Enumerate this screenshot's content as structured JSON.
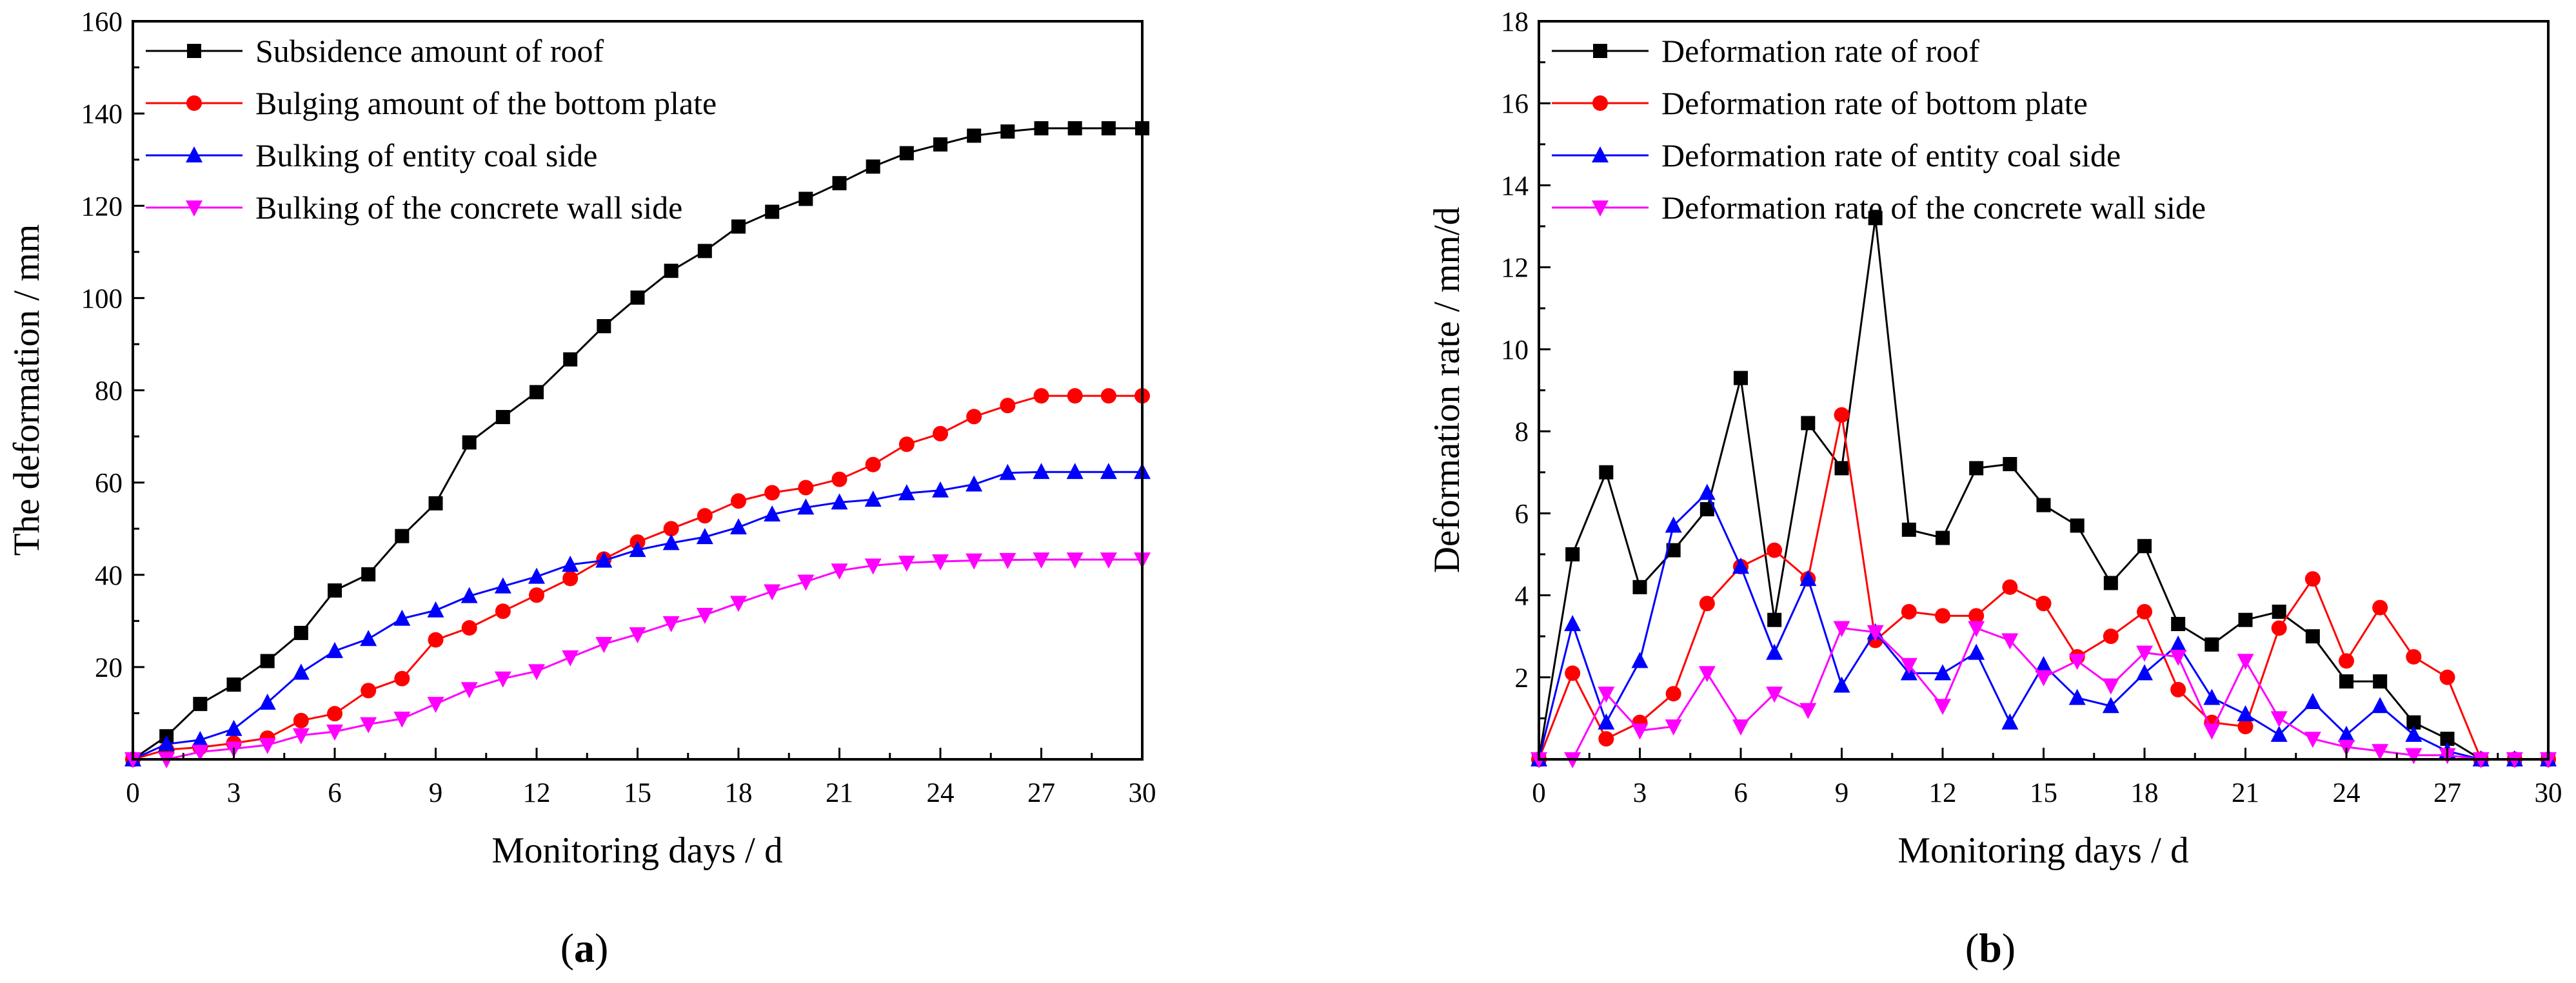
{
  "colors": {
    "roof": "#000000",
    "bottom": "#ff0000",
    "coal": "#0000ff",
    "wall": "#ff00ff"
  },
  "chart_data": [
    {
      "type": "line",
      "panel_label": "a",
      "panel_label_open": "(",
      "panel_label_close": ")",
      "title": "",
      "xlabel": "Monitoring days / d",
      "ylabel": "The deformation / mm",
      "xlim": [
        0,
        30
      ],
      "ylim": [
        0,
        160
      ],
      "xticks": [
        0,
        3,
        6,
        9,
        12,
        15,
        18,
        21,
        24,
        27,
        30
      ],
      "yticks": [
        20,
        40,
        60,
        80,
        100,
        120,
        140,
        160
      ],
      "legend_position": "top-left",
      "x": [
        0,
        1,
        2,
        3,
        4,
        5,
        6,
        7,
        8,
        9,
        10,
        11,
        12,
        13,
        14,
        15,
        16,
        17,
        18,
        19,
        20,
        21,
        22,
        23,
        24,
        25,
        26,
        27,
        28,
        29,
        30
      ],
      "series": [
        {
          "name": "Subsidence amount of roof",
          "color_key": "roof",
          "marker": "square",
          "values": [
            0,
            5,
            12,
            16.2,
            21.3,
            27.4,
            36.6,
            40.1,
            48.4,
            55.5,
            68.7,
            74.2,
            79.6,
            86.7,
            93.9,
            100.1,
            105.9,
            110.2,
            115.5,
            118.7,
            121.5,
            124.9,
            128.5,
            131.4,
            133.3,
            135.2,
            136.1,
            136.8,
            136.8,
            136.8,
            136.8
          ]
        },
        {
          "name": "Bulging amount of the bottom plate",
          "color_key": "bottom",
          "marker": "circle",
          "values": [
            0,
            2.1,
            2.6,
            3.5,
            4.6,
            8.4,
            9.9,
            14.9,
            17.5,
            25.9,
            28.5,
            32.1,
            35.6,
            39.2,
            43.4,
            47.1,
            50.0,
            52.8,
            56.0,
            57.8,
            58.9,
            60.7,
            63.9,
            68.3,
            70.6,
            74.3,
            76.7,
            78.8,
            78.8,
            78.8,
            78.8
          ]
        },
        {
          "name": "Bulking of entity coal side",
          "color_key": "coal",
          "marker": "triangle-up",
          "values": [
            0,
            3.3,
            4.2,
            6.6,
            12.3,
            18.8,
            23.5,
            26.1,
            30.5,
            32.3,
            35.4,
            37.5,
            39.6,
            42.2,
            43.1,
            45.4,
            46.9,
            48.2,
            50.3,
            53.1,
            54.6,
            55.7,
            56.3,
            57.7,
            58.3,
            59.6,
            62.1,
            62.3,
            62.3,
            62.3,
            62.3
          ]
        },
        {
          "name": "Bulking of the concrete wall side",
          "color_key": "wall",
          "marker": "triangle-down",
          "values": [
            0,
            0,
            1.6,
            2.3,
            3.1,
            5.2,
            6.0,
            7.6,
            8.8,
            12.0,
            15.2,
            17.5,
            19.1,
            22.1,
            25.0,
            27.1,
            29.5,
            31.3,
            33.9,
            36.4,
            38.5,
            40.9,
            42.0,
            42.6,
            42.9,
            43.1,
            43.2,
            43.3,
            43.3,
            43.3,
            43.3
          ]
        }
      ]
    },
    {
      "type": "line",
      "panel_label": "b",
      "panel_label_open": "(",
      "panel_label_close": ")",
      "title": "",
      "xlabel": "Monitoring days / d",
      "ylabel": "Deformation rate / mm/d",
      "xlim": [
        0,
        30
      ],
      "ylim": [
        0,
        18
      ],
      "xticks": [
        0,
        3,
        6,
        9,
        12,
        15,
        18,
        21,
        24,
        27,
        30
      ],
      "yticks": [
        2,
        4,
        6,
        8,
        10,
        12,
        14,
        16,
        18
      ],
      "legend_position": "top-left",
      "x": [
        0,
        1,
        2,
        3,
        4,
        5,
        6,
        7,
        8,
        9,
        10,
        11,
        12,
        13,
        14,
        15,
        16,
        17,
        18,
        19,
        20,
        21,
        22,
        23,
        24,
        25,
        26,
        27,
        28,
        29,
        30
      ],
      "series": [
        {
          "name": "Deformation rate of roof",
          "color_key": "roof",
          "marker": "square",
          "values": [
            0,
            5.0,
            7.0,
            4.2,
            5.1,
            6.1,
            9.3,
            3.4,
            8.2,
            7.1,
            13.2,
            5.6,
            5.4,
            7.1,
            7.2,
            6.2,
            5.7,
            4.3,
            5.2,
            3.3,
            2.8,
            3.4,
            3.6,
            3.0,
            1.9,
            1.9,
            0.9,
            0.5,
            0,
            0,
            0
          ]
        },
        {
          "name": "Deformation rate of bottom plate",
          "color_key": "bottom",
          "marker": "circle",
          "values": [
            0,
            2.1,
            0.5,
            0.9,
            1.6,
            3.8,
            4.7,
            5.1,
            4.4,
            8.4,
            2.9,
            3.6,
            3.5,
            3.5,
            4.2,
            3.8,
            2.5,
            3.0,
            3.6,
            1.7,
            0.9,
            0.8,
            3.2,
            4.4,
            2.4,
            3.7,
            2.5,
            2.0,
            0,
            0,
            0
          ]
        },
        {
          "name": "Deformation rate of entity coal side",
          "color_key": "coal",
          "marker": "triangle-up",
          "values": [
            0,
            3.3,
            0.9,
            2.4,
            5.7,
            6.5,
            4.7,
            2.6,
            4.4,
            1.8,
            3.1,
            2.1,
            2.1,
            2.6,
            0.9,
            2.3,
            1.5,
            1.3,
            2.1,
            2.8,
            1.5,
            1.1,
            0.6,
            1.4,
            0.6,
            1.3,
            0.6,
            0.2,
            0,
            0,
            0
          ]
        },
        {
          "name": "Deformation rate of the concrete wall side",
          "color_key": "wall",
          "marker": "triangle-down",
          "values": [
            0,
            0,
            1.6,
            0.7,
            0.8,
            2.1,
            0.8,
            1.6,
            1.2,
            3.2,
            3.1,
            2.3,
            1.3,
            3.2,
            2.9,
            2.0,
            2.4,
            1.8,
            2.6,
            2.5,
            0.7,
            2.4,
            1.0,
            0.5,
            0.3,
            0.2,
            0.1,
            0.1,
            0,
            0,
            0
          ]
        }
      ]
    }
  ]
}
